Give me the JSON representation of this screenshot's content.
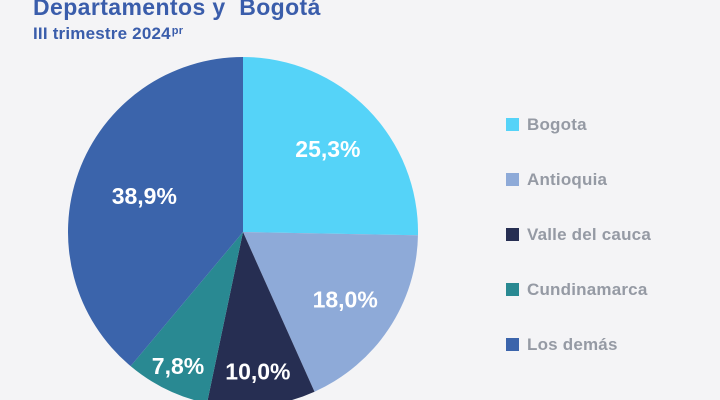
{
  "colors": {
    "background": "#f4f4f6",
    "title_text": "#3a5dab",
    "legend_text": "#959aa4",
    "slice_label_text": "#ffffff"
  },
  "header": {
    "title": "Departamentos y  Bogotá",
    "subtitle": "III trimestre 2024",
    "subtitle_superscript": "pr"
  },
  "chart_data": {
    "type": "pie",
    "title": "Departamentos y  Bogotá",
    "subtitle": "III trimestre 2024 (pr)",
    "unit": "percent",
    "direction": "clockwise",
    "start_angle_deg": 0,
    "legend_position": "right",
    "slices": [
      {
        "label": "Bogota",
        "value": 25.3,
        "value_label": "25,3%",
        "color": "#55d3f8",
        "label_radius": 0.68
      },
      {
        "label": "Antioquia",
        "value": 18.0,
        "value_label": "18,0%",
        "color": "#8eaad8",
        "label_radius": 0.7
      },
      {
        "label": "Valle del cauca",
        "value": 10.0,
        "value_label": "10,0%",
        "color": "#262e52",
        "label_radius": 0.8
      },
      {
        "label": "Cundinamarca",
        "value": 7.8,
        "value_label": "7,8%",
        "color": "#298992",
        "label_radius": 0.85
      },
      {
        "label": "Los demás",
        "value": 38.9,
        "value_label": "38,9%",
        "color": "#3b64ab",
        "label_radius": 0.6
      }
    ]
  }
}
